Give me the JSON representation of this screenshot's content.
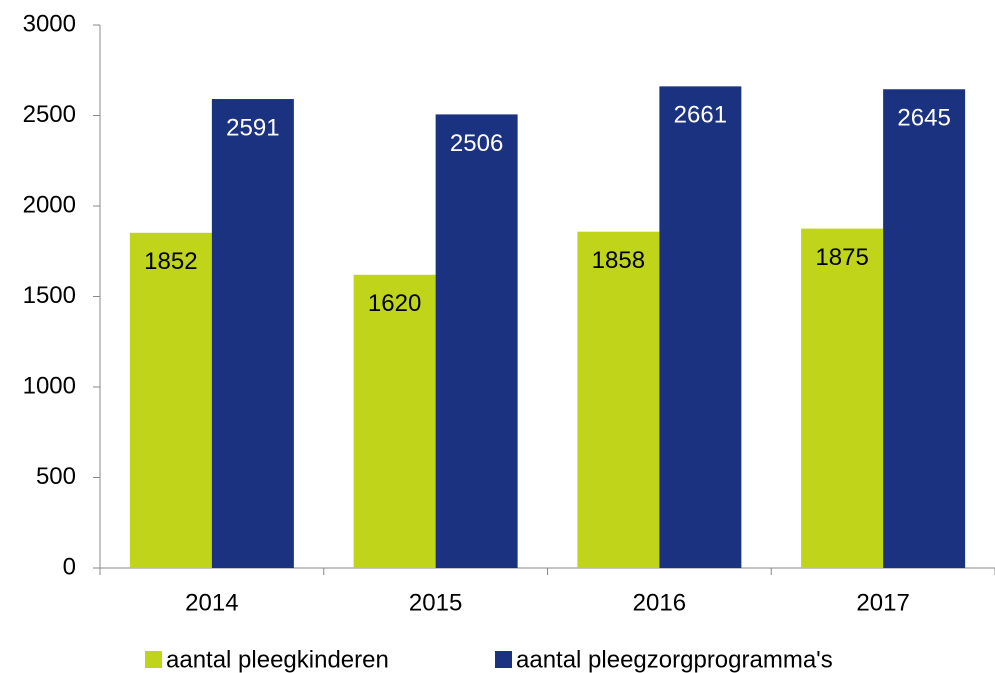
{
  "chart_data": {
    "type": "bar",
    "categories": [
      "2014",
      "2015",
      "2016",
      "2017"
    ],
    "series": [
      {
        "name": "aantal pleegkinderen",
        "color": "#c0d41a",
        "values": [
          1852,
          1620,
          1858,
          1875
        ]
      },
      {
        "name": "aantal pleegzorgprogramma's",
        "color": "#1b3281",
        "values": [
          2591,
          2506,
          2661,
          2645
        ]
      }
    ],
    "ylim": [
      0,
      3000
    ],
    "yticks": [
      0,
      500,
      1000,
      1500,
      2000,
      2500,
      3000
    ],
    "grid": false,
    "legend": "bottom"
  }
}
